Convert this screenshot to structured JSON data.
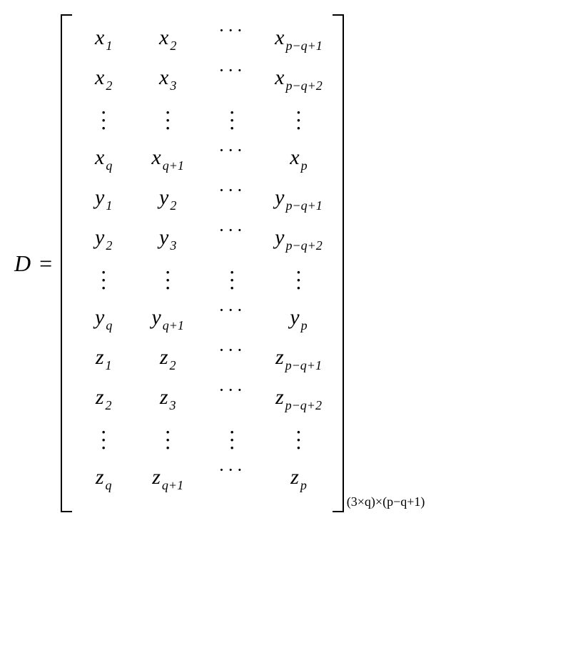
{
  "lhs": "D",
  "equals": "=",
  "matrix": {
    "rows": 12,
    "cols": 4,
    "cells": [
      [
        {
          "v": "x",
          "s": "1"
        },
        {
          "v": "x",
          "s": "2"
        },
        {
          "cdots": true
        },
        {
          "v": "x",
          "s": "p−q+1"
        }
      ],
      [
        {
          "v": "x",
          "s": "2"
        },
        {
          "v": "x",
          "s": "3"
        },
        {
          "cdots": true
        },
        {
          "v": "x",
          "s": "p−q+2"
        }
      ],
      [
        {
          "vdots": true
        },
        {
          "vdots": true
        },
        {
          "vdots": true
        },
        {
          "vdots": true
        }
      ],
      [
        {
          "v": "x",
          "s": "q"
        },
        {
          "v": "x",
          "s": "q+1"
        },
        {
          "cdots": true
        },
        {
          "v": "x",
          "s": "p"
        }
      ],
      [
        {
          "v": "y",
          "s": "1"
        },
        {
          "v": "y",
          "s": "2"
        },
        {
          "cdots": true
        },
        {
          "v": "y",
          "s": "p−q+1"
        }
      ],
      [
        {
          "v": "y",
          "s": "2"
        },
        {
          "v": "y",
          "s": "3"
        },
        {
          "cdots": true
        },
        {
          "v": "y",
          "s": "p−q+2"
        }
      ],
      [
        {
          "vdots": true
        },
        {
          "vdots": true
        },
        {
          "vdots": true
        },
        {
          "vdots": true
        }
      ],
      [
        {
          "v": "y",
          "s": "q"
        },
        {
          "v": "y",
          "s": "q+1"
        },
        {
          "cdots": true
        },
        {
          "v": "y",
          "s": "p"
        }
      ],
      [
        {
          "v": "z",
          "s": "1"
        },
        {
          "v": "z",
          "s": "2"
        },
        {
          "cdots": true
        },
        {
          "v": "z",
          "s": "p−q+1"
        }
      ],
      [
        {
          "v": "z",
          "s": "2"
        },
        {
          "v": "z",
          "s": "3"
        },
        {
          "cdots": true
        },
        {
          "v": "z",
          "s": "p−q+2"
        }
      ],
      [
        {
          "vdots": true
        },
        {
          "vdots": true
        },
        {
          "vdots": true
        },
        {
          "vdots": true
        }
      ],
      [
        {
          "v": "z",
          "s": "q"
        },
        {
          "v": "z",
          "s": "q+1"
        },
        {
          "cdots": true
        },
        {
          "v": "z",
          "s": "p"
        }
      ]
    ]
  },
  "dimension": "(3×q)×(p−q+1)",
  "style": {
    "font_family": "Times New Roman",
    "var_fontsize": 30,
    "sub_fontsize": 18,
    "lhs_fontsize": 32,
    "dim_fontsize": 18,
    "text_color": "#000000",
    "background_color": "#ffffff",
    "bracket_width": 2.5
  }
}
